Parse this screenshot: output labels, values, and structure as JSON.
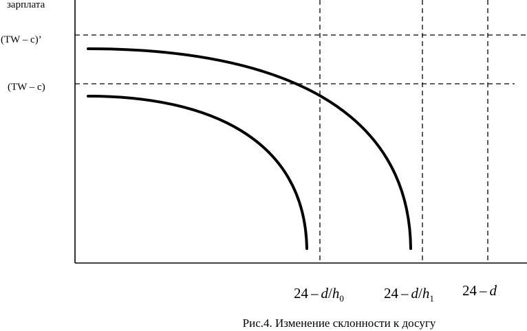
{
  "figure": {
    "y_axis_label": "зарплата",
    "y_level_high": "(TW – c)’",
    "y_level_low": "(TW – c)",
    "x_marks": [
      {
        "num": "24",
        "op": "–",
        "var": "d",
        "slash": "/",
        "h": "h",
        "sub": "0"
      },
      {
        "num": "24",
        "op": "–",
        "var": "d",
        "slash": "/",
        "h": "h",
        "sub": "1"
      },
      {
        "num": "24",
        "op": "–",
        "var": "d"
      }
    ],
    "caption": "Рис.4. Изменение склонности к досугу",
    "curves": [
      {
        "name": "lower-curve"
      },
      {
        "name": "upper-curve"
      }
    ]
  }
}
